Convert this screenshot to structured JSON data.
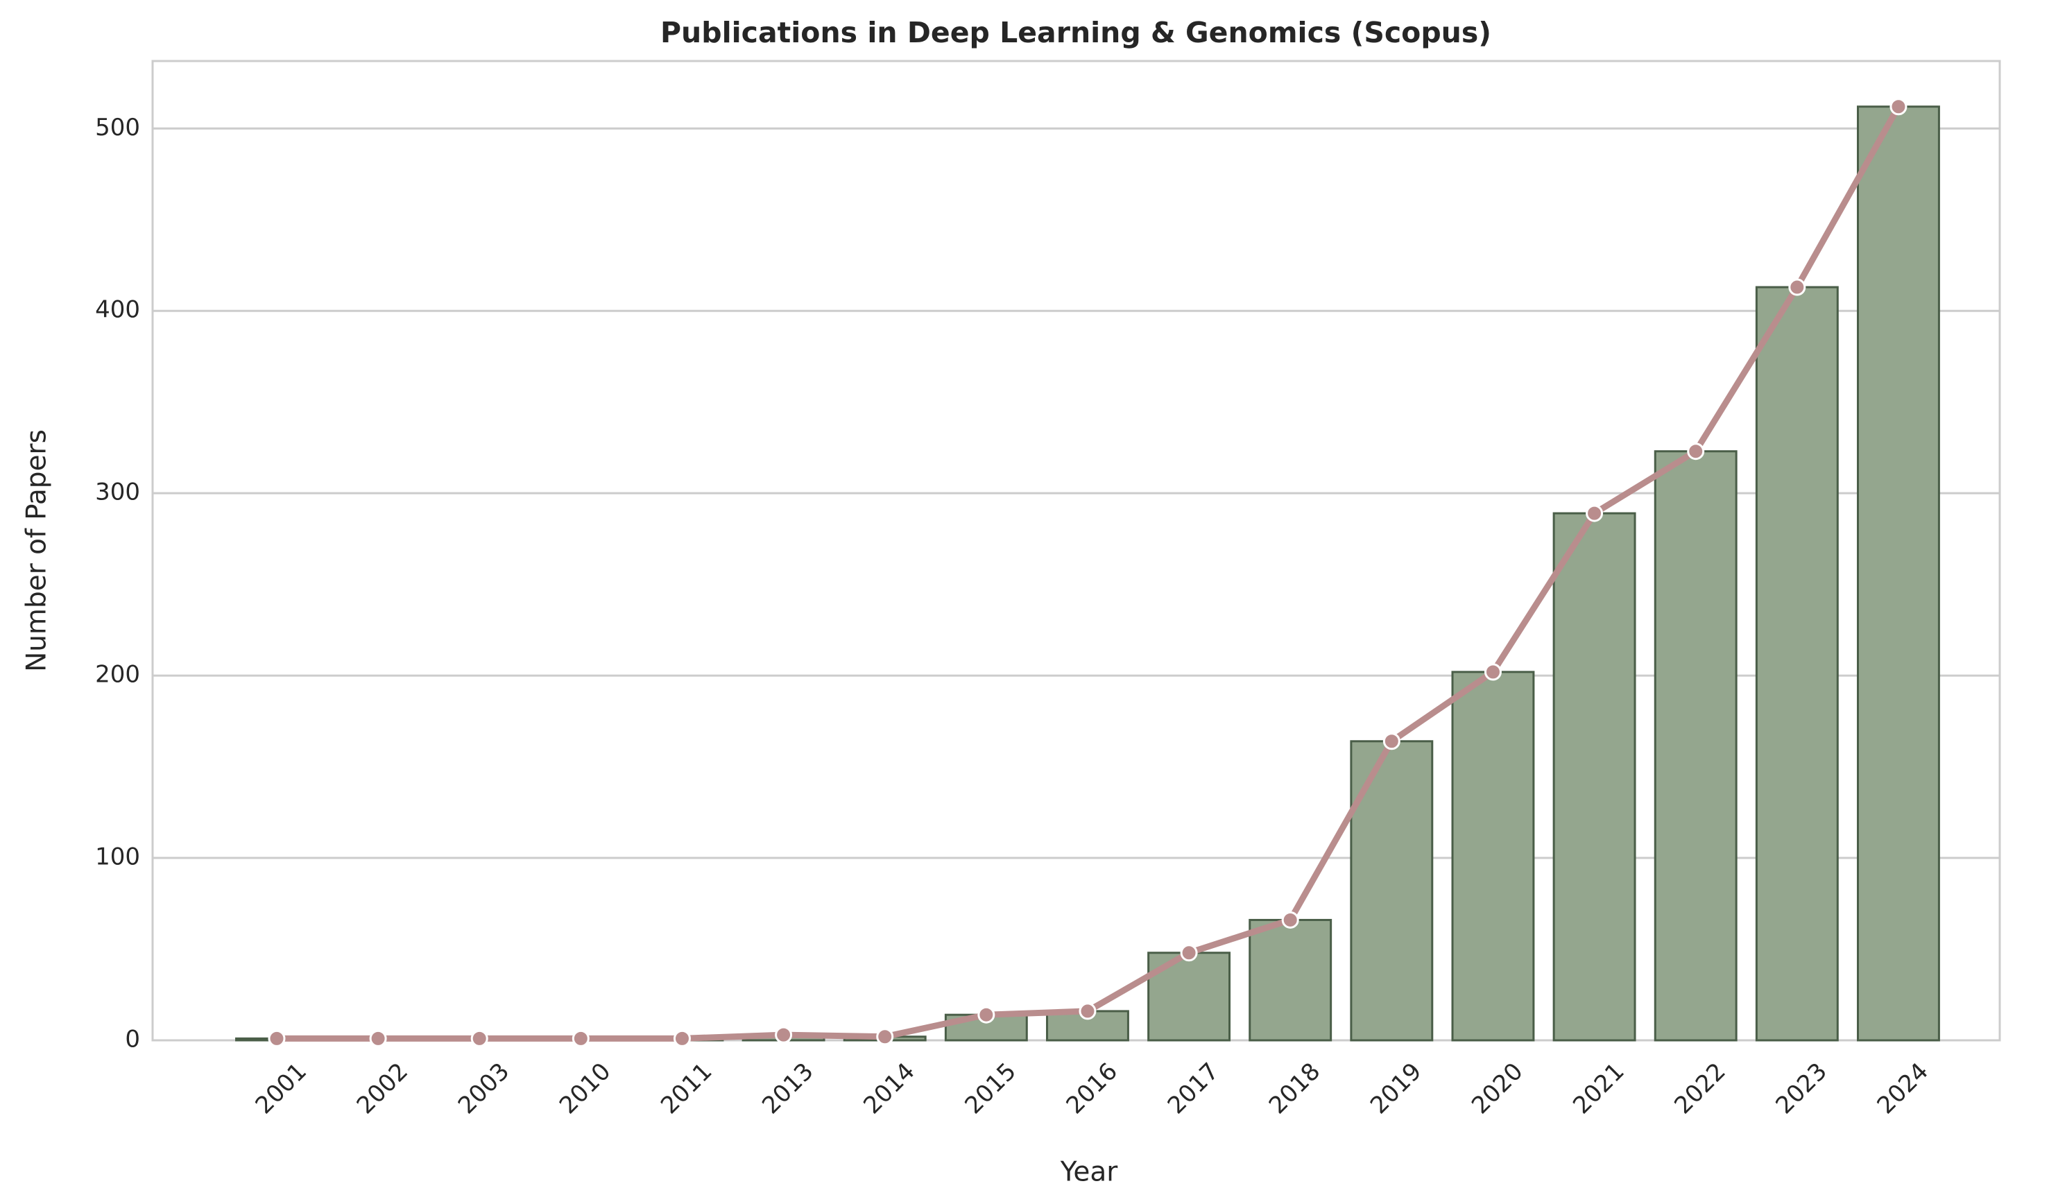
{
  "chart_data": {
    "type": "bar",
    "title": "Publications in Deep Learning & Genomics (Scopus)",
    "x_label": "Year",
    "y_label": "Number of Papers",
    "categories": [
      "2001",
      "2002",
      "2003",
      "2010",
      "2011",
      "2013",
      "2014",
      "2015",
      "2016",
      "2017",
      "2018",
      "2019",
      "2020",
      "2021",
      "2022",
      "2023",
      "2024"
    ],
    "values": [
      1,
      1,
      1,
      1,
      1,
      3,
      2,
      14,
      16,
      48,
      66,
      164,
      202,
      289,
      323,
      413,
      512
    ],
    "color": "#94a68e",
    "edge_color": "#4a5e48",
    "line_color": "#b98d8d",
    "ylim": [
      0,
      537
    ],
    "yticks": [
      0,
      100,
      200,
      300,
      400,
      500
    ],
    "grid": true
  }
}
